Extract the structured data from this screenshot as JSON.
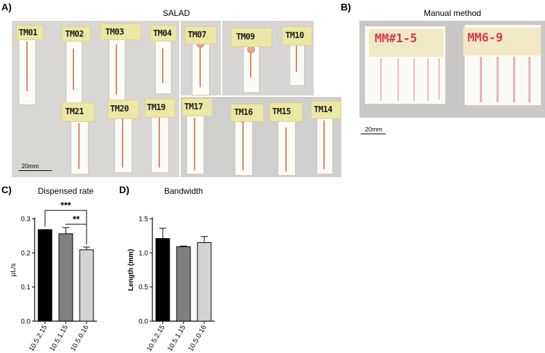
{
  "panels": {
    "a": {
      "letter": "A)",
      "title": "SALAD",
      "scale_label": "20mm",
      "top_labels": [
        "TM01",
        "TM02",
        "TM03",
        "TM04"
      ],
      "bottom_labels": [
        "TM21",
        "TM20",
        "TM19"
      ],
      "right_top_labels": [
        "TM07",
        "TM09",
        "TM10"
      ],
      "right_bottom_labels": [
        "TM17",
        "TM16",
        "TM15",
        "TM14"
      ]
    },
    "b": {
      "letter": "B)",
      "title": "Manual method",
      "scale_label": "20mm",
      "labels": [
        "MM#1-5",
        "MM6-9"
      ]
    },
    "c": {
      "letter": "C)"
    },
    "d": {
      "letter": "D)"
    }
  },
  "chart_data": [
    {
      "type": "bar",
      "title": "Dispensed rate",
      "ylabel": "µL/s",
      "xlabel": "",
      "categories": [
        "10.5.2.15",
        "10.5.1.15",
        "10.5.0.16"
      ],
      "values": [
        0.268,
        0.256,
        0.209
      ],
      "errors": [
        0.0,
        0.018,
        0.008
      ],
      "colors": [
        "#000000",
        "#808080",
        "#d3d3d3"
      ],
      "ylim": [
        0,
        0.3
      ],
      "yticks": [
        "0.0",
        "0.1",
        "0.2",
        "0.3"
      ],
      "significance": [
        {
          "label": "***",
          "from": 0,
          "to": 2
        },
        {
          "label": "**",
          "from": 1,
          "to": 2
        }
      ]
    },
    {
      "type": "bar",
      "title": "Bandwidth",
      "ylabel": "Length (mm)",
      "xlabel": "",
      "categories": [
        "10.5.2.15",
        "10.5.1.15",
        "10.5.0.16"
      ],
      "values": [
        1.21,
        1.09,
        1.15
      ],
      "errors": [
        0.15,
        0.01,
        0.09
      ],
      "colors": [
        "#000000",
        "#808080",
        "#d3d3d3"
      ],
      "ylim": [
        0,
        1.5
      ],
      "yticks": [
        "0.0",
        "0.5",
        "1.0",
        "1.5"
      ]
    }
  ]
}
